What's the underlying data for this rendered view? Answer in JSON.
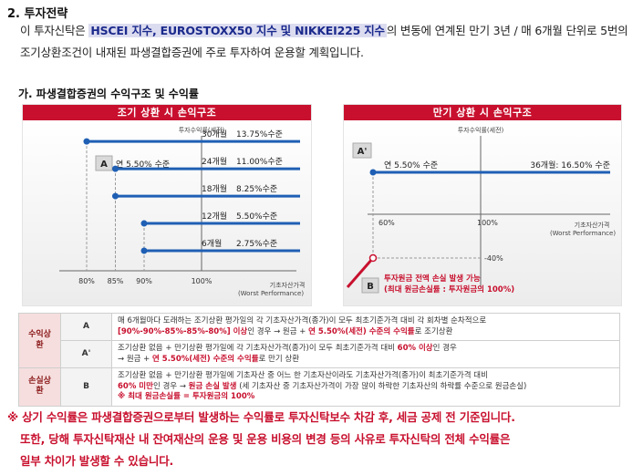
{
  "section": {
    "number": "2.",
    "title": "투자전략"
  },
  "intro": {
    "pre": "이 투자신탁은 ",
    "highlight": "HSCEI 지수, EUROSTOXX50 지수 및 NIKKEI225 지수",
    "post": "의 변동에 연계된 만기 3년 / 매 6개월 단위로 5번의 조기상환조건이 내재된 파생결합증권에 주로 투자하여 운용할 계획입니다."
  },
  "subsection": "가. 파생결합증권의 수익구조 및 수익률",
  "early_chart": {
    "title": "조기 상환 시 손익구조",
    "y_axis": "투자수익률(세전)",
    "x_axis_line1": "기초자산가격",
    "x_axis_line2": "(Worst Performance)",
    "badge": "A",
    "label_a": "연 5.50% 수준",
    "levels": [
      {
        "period": "30개월",
        "rate": "13.75%수준",
        "ret": 13.75
      },
      {
        "period": "24개월",
        "rate": "11.00%수준",
        "ret": 11.0
      },
      {
        "period": "18개월",
        "rate": "8.25%수준",
        "ret": 8.25
      },
      {
        "period": "12개월",
        "rate": "5.50%수준",
        "ret": 5.5
      },
      {
        "period": "6개월",
        "rate": "2.75%수준",
        "ret": 2.75
      }
    ],
    "strikes": [
      80,
      85,
      85,
      90,
      90
    ],
    "x_ticks": [
      "80%",
      "85%",
      "90%",
      "100%"
    ],
    "x_tick_values": [
      80,
      85,
      90,
      100
    ],
    "line_color": "#1f5fb4"
  },
  "maturity_chart": {
    "title": "만기 상환 시 손익구조",
    "y_axis": "투자수익률(세전)",
    "x_axis_line1": "기초자산가격",
    "x_axis_line2": "(Worst Performance)",
    "badge_a": "A'",
    "label_a": "연 5.50% 수준",
    "label_36": "36개월: 16.50% 수준",
    "x_ticks": [
      "60%",
      "100%"
    ],
    "loss_label": "-40%",
    "badge_b": "B",
    "loss_line1": "투자원금 전액 손실 발생 가능",
    "loss_line2": "(최대 원금손실률 : 투자원금의 100%)",
    "line_color": "#1f5fb4",
    "loss_color": "#c8102e"
  },
  "conditions": {
    "profit_label": "수익상환",
    "loss_label": "손실상환",
    "rows": [
      {
        "code": "A",
        "line1": "매 6개월마다 도래하는 조기상환 평가일의 각 기초자산가격(종가)이 모두 최초기준가격 대비 각 회차별 순차적으로",
        "line2_red": "[90%-90%-85%-85%-80%] 이상",
        "line2_mid": "인 경우 → 원금 + ",
        "line2_red2": "연 5.50%(세전) 수준의 수익률",
        "line2_post": "로 조기상환"
      },
      {
        "code": "A'",
        "line1_pre": "조기상환 없음 + 만기상환 평가일에 각 기초자산가격(종가)이 모두 최초기준가격 대비 ",
        "line1_red": "60% 이상",
        "line1_post": "인 경우",
        "line2_pre": "→ 원금 + ",
        "line2_red": "연 5.50%(세전) 수준의 수익률",
        "line2_post": "로 만기 상환"
      },
      {
        "code": "B",
        "line1": "조기상환 없음 + 만기상환 평가일에 기초자산 중 어느 한 기초자산이라도 기초자산가격(종가)이 최초기준가격 대비",
        "line2_red": "60% 미만",
        "line2_mid": "인 경우 → ",
        "line2_red2": "원금 손실 발생",
        "line2_post": " (세 기초자산 중 기초자산가격이 가장 많이 하락한 기초자산의 하락률 수준으로 원금손실)",
        "line3_red": "※ 최대 원금손실률 = 투자원금의 100%"
      }
    ]
  },
  "notes": {
    "line1": "※ 상기 수익률은 파생결합증권으로부터 발생하는 수익률로 투자신탁보수 차감 후, 세금 공제 전 기준입니다.",
    "line2": "또한, 당해 투자신탁재산 내 잔여재산의 운용 및 운용 비용의 변경 등의 사유로 투자신탁의 전체 수익률은",
    "line3": "일부 차이가 발생할 수 있습니다."
  }
}
